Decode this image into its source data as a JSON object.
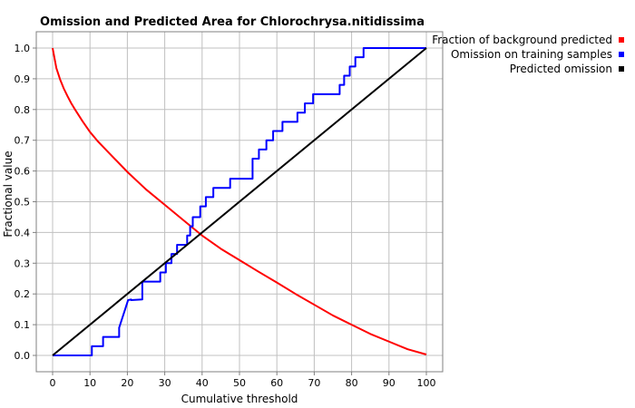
{
  "chart_data": {
    "type": "line",
    "title": "Omission and Predicted Area for Chlorochrysa.nitidissima",
    "xlabel": "Cumulative threshold",
    "ylabel": "Fractional value",
    "xlim": [
      0,
      100
    ],
    "ylim": [
      0,
      1.0
    ],
    "xticks": [
      "0",
      "10",
      "20",
      "30",
      "40",
      "50",
      "60",
      "70",
      "80",
      "90",
      "100"
    ],
    "yticks": [
      "0.0",
      "0.1",
      "0.2",
      "0.3",
      "0.4",
      "0.5",
      "0.6",
      "0.7",
      "0.8",
      "0.9",
      "1.0"
    ],
    "grid": true,
    "legend_position": "top-right-outside",
    "series": [
      {
        "name": "Fraction of background predicted",
        "color": "#ff0000",
        "x": [
          0,
          1,
          2,
          3,
          4,
          5,
          6,
          8,
          10,
          12,
          15,
          20,
          25,
          30,
          35,
          40,
          45,
          50,
          55,
          60,
          65,
          70,
          75,
          80,
          85,
          90,
          95,
          100
        ],
        "y": [
          1.0,
          0.935,
          0.898,
          0.868,
          0.843,
          0.82,
          0.8,
          0.762,
          0.727,
          0.698,
          0.66,
          0.597,
          0.54,
          0.49,
          0.44,
          0.39,
          0.347,
          0.31,
          0.273,
          0.237,
          0.2,
          0.165,
          0.13,
          0.1,
          0.07,
          0.045,
          0.02,
          0.003
        ]
      },
      {
        "name": "Omission on training samples",
        "color": "#0000ff",
        "x": [
          0,
          10.5,
          10.5,
          13.5,
          13.5,
          17.8,
          17.8,
          18.6,
          19.4,
          20.2,
          21,
          21,
          24,
          24,
          28.8,
          28.8,
          30.3,
          30.3,
          31.8,
          31.8,
          33.3,
          33.3,
          36,
          36,
          36.8,
          36.8,
          37.5,
          37.5,
          39.5,
          39.5,
          41,
          41,
          43,
          43,
          47.5,
          47.5,
          53.5,
          53.5,
          55.2,
          55.2,
          57.2,
          57.2,
          59,
          59,
          61.5,
          61.5,
          65.5,
          65.5,
          67.5,
          67.5,
          69.7,
          69.7,
          76.8,
          76.8,
          78,
          78,
          79.5,
          79.5,
          81,
          81,
          83.2,
          83.2,
          100
        ],
        "y": [
          0,
          0,
          0.03,
          0.03,
          0.06,
          0.06,
          0.09,
          0.12,
          0.15,
          0.18,
          0.182,
          0.18,
          0.182,
          0.24,
          0.24,
          0.27,
          0.27,
          0.3,
          0.3,
          0.33,
          0.33,
          0.36,
          0.36,
          0.39,
          0.39,
          0.42,
          0.42,
          0.45,
          0.45,
          0.485,
          0.485,
          0.515,
          0.515,
          0.545,
          0.545,
          0.575,
          0.575,
          0.64,
          0.64,
          0.67,
          0.67,
          0.7,
          0.7,
          0.73,
          0.73,
          0.76,
          0.76,
          0.79,
          0.79,
          0.82,
          0.82,
          0.85,
          0.85,
          0.88,
          0.88,
          0.91,
          0.91,
          0.94,
          0.94,
          0.97,
          0.97,
          1.0,
          1.0
        ]
      },
      {
        "name": "Predicted omission",
        "color": "#000000",
        "x": [
          0,
          100
        ],
        "y": [
          0,
          1.0
        ]
      }
    ]
  }
}
